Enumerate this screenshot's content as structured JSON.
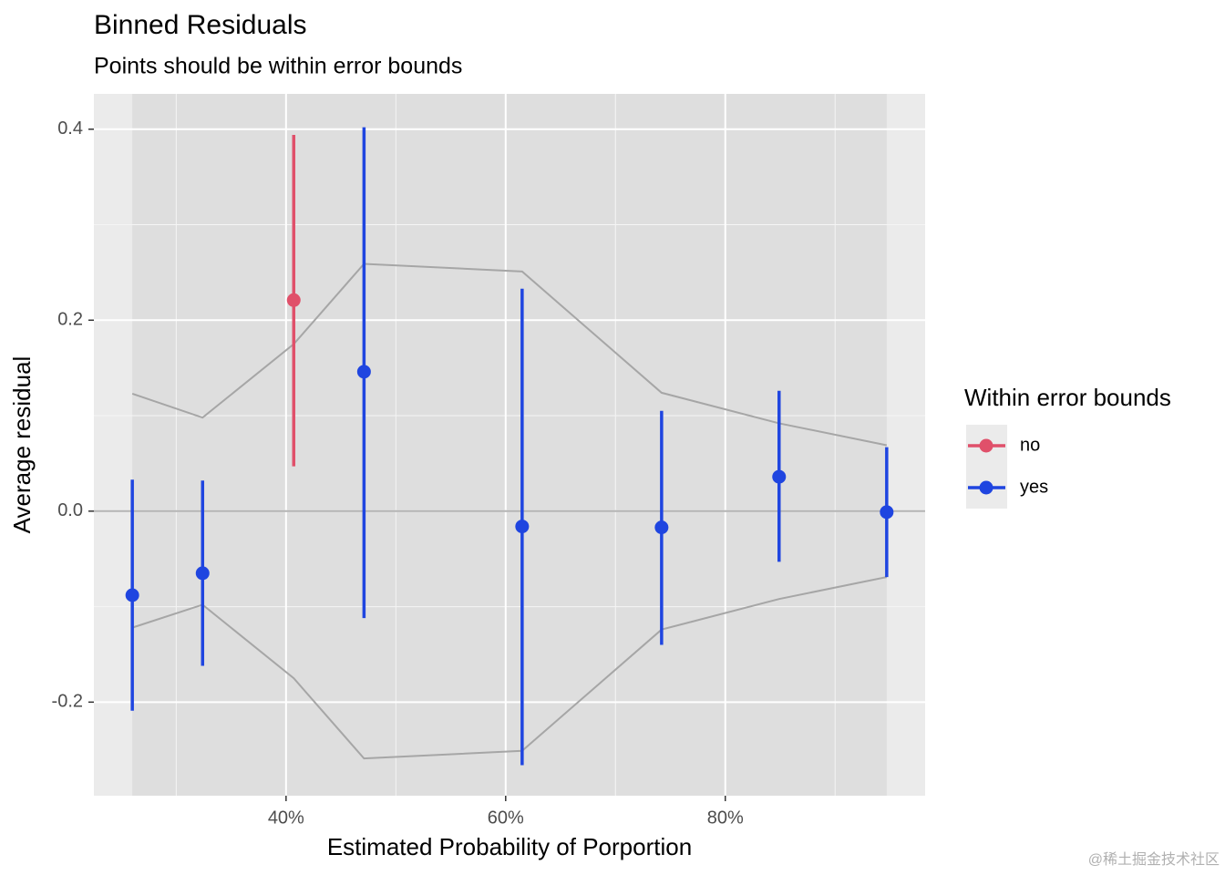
{
  "chart_data": {
    "type": "errorbar",
    "title": "Binned Residuals",
    "subtitle": "Points should be within error bounds",
    "x_label": "Estimated Probability of Porportion",
    "y_label": "Average residual",
    "legend_title": "Within error bounds",
    "watermark": "@稀土掘金技术社区",
    "xlim": [
      0.225,
      0.982
    ],
    "ylim": [
      -0.298,
      0.437
    ],
    "xticks": [
      {
        "value": 0.4,
        "label": "40%"
      },
      {
        "value": 0.6,
        "label": "60%"
      },
      {
        "value": 0.8,
        "label": "80%"
      }
    ],
    "yticks": [
      {
        "value": -0.2,
        "label": "-0.2"
      },
      {
        "value": 0.0,
        "label": "0.0"
      },
      0.2,
      0.4
    ],
    "grid": true,
    "hline": 0,
    "series": [
      {
        "name": "no",
        "color": "#e0506a",
        "x": [
          0.407
        ],
        "values": [
          0.221
        ],
        "lower": [
          0.047
        ],
        "upper": [
          0.394
        ]
      },
      {
        "name": "yes",
        "color": "#1f45e0",
        "x": [
          0.26,
          0.324,
          0.471,
          0.615,
          0.742,
          0.849,
          0.947
        ],
        "values": [
          -0.088,
          -0.065,
          0.146,
          -0.016,
          -0.017,
          0.036,
          -0.001
        ],
        "lower": [
          -0.209,
          -0.162,
          -0.112,
          -0.266,
          -0.14,
          -0.053,
          -0.069
        ],
        "upper": [
          0.033,
          0.032,
          0.402,
          0.233,
          0.105,
          0.126,
          0.067
        ]
      }
    ],
    "bounds": {
      "color": "#a6a6a6",
      "x": [
        0.26,
        0.324,
        0.407,
        0.471,
        0.615,
        0.742,
        0.849,
        0.947
      ],
      "upper": [
        0.123,
        0.098,
        0.175,
        0.259,
        0.251,
        0.124,
        0.092,
        0.069
      ],
      "lower": [
        -0.122,
        -0.098,
        -0.175,
        -0.259,
        -0.251,
        -0.124,
        -0.092,
        -0.069
      ]
    }
  }
}
